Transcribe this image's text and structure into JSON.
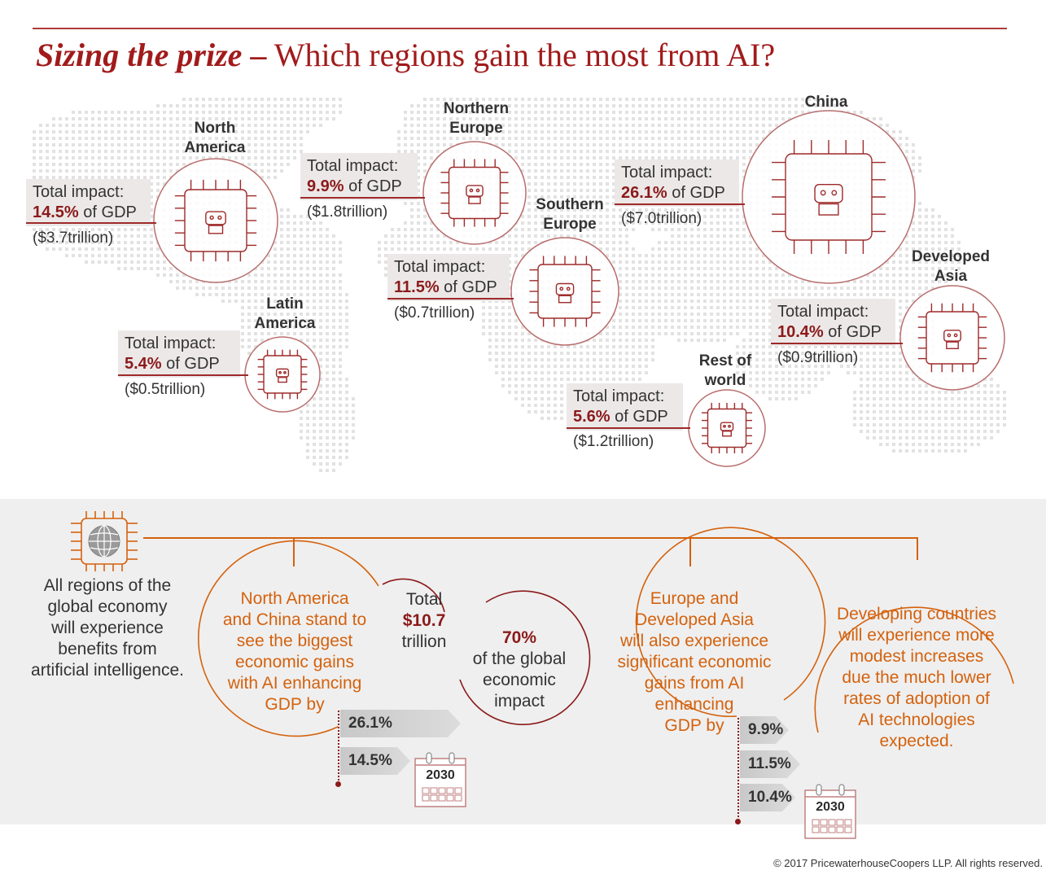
{
  "title": {
    "bold": "Sizing the prize",
    "dash": "–",
    "rest": "Which regions gain the most from AI?"
  },
  "regions": [
    {
      "id": "north-america",
      "name1": "North",
      "name2": "America",
      "label": "Total impact:",
      "pct": "14.5%",
      "of": "of GDP",
      "trillion": "($3.7trillion)"
    },
    {
      "id": "northern-europe",
      "name1": "Northern",
      "name2": "Europe",
      "label": "Total impact:",
      "pct": "9.9%",
      "of": "of GDP",
      "trillion": "($1.8trillion)"
    },
    {
      "id": "china",
      "name1": "China",
      "name2": "",
      "label": "Total impact:",
      "pct": "26.1%",
      "of": "of GDP",
      "trillion": "($7.0trillion)"
    },
    {
      "id": "southern-europe",
      "name1": "Southern",
      "name2": "Europe",
      "label": "Total impact:",
      "pct": "11.5%",
      "of": "of GDP",
      "trillion": "($0.7trillion)"
    },
    {
      "id": "developed-asia",
      "name1": "Developed",
      "name2": "Asia",
      "label": "Total impact:",
      "pct": "10.4%",
      "of": "of GDP",
      "trillion": "($0.9trillion)"
    },
    {
      "id": "latin-america",
      "name1": "Latin",
      "name2": "America",
      "label": "Total impact:",
      "pct": "5.4%",
      "of": "of GDP",
      "trillion": "($0.5trillion)"
    },
    {
      "id": "rest-of-world",
      "name1": "Rest of",
      "name2": "world",
      "label": "Total impact:",
      "pct": "5.6%",
      "of": "of GDP",
      "trillion": "($1.2trillion)"
    }
  ],
  "bottom": {
    "intro": [
      "All regions of the",
      "global economy",
      "will experience",
      "benefits from",
      "artificial intelligence."
    ],
    "na_china": [
      "North America",
      "and China stand to",
      "see the biggest",
      "economic gains",
      "with AI enhancing",
      "GDP by"
    ],
    "total": {
      "l1": "Total",
      "l2": "$10.7",
      "l3": "trillion"
    },
    "seventy": {
      "l1": "70%",
      "l2": "of the global",
      "l3": "economic",
      "l4": "impact"
    },
    "na_china_values": [
      "26.1%",
      "14.5%"
    ],
    "europe": [
      "Europe and",
      "Developed Asia",
      "will also experience",
      "significant economic",
      "gains from AI",
      "enhancing",
      "GDP by"
    ],
    "europe_values": [
      "9.9%",
      "11.5%",
      "10.4%"
    ],
    "developing": [
      "Developing countries",
      "will experience more",
      "modest increases",
      "due the much lower",
      "rates of adoption of",
      "AI technologies",
      "expected."
    ],
    "year": "2030"
  },
  "copyright": "© 2017 PricewaterhouseCoopers LLP. All rights reserved.",
  "colors": {
    "accent_red": "#a11b1b",
    "accent_orange": "#d4620e",
    "box_grey": "#ece8e8"
  }
}
